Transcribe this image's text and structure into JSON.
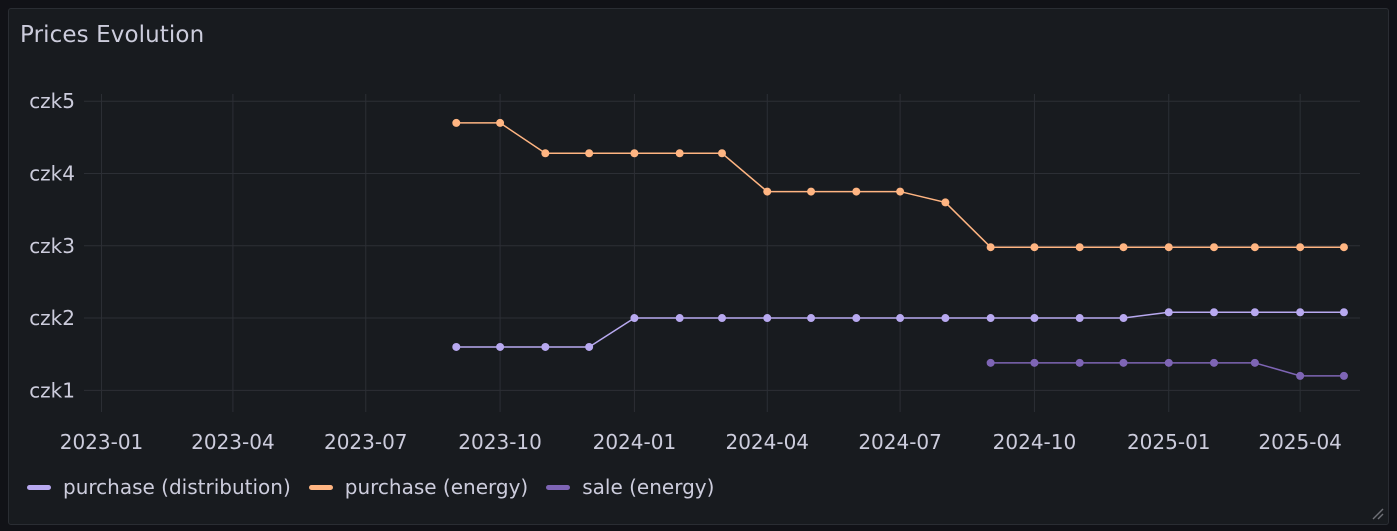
{
  "panel": {
    "title": "Prices Evolution"
  },
  "chart_data": {
    "type": "line",
    "title": "Prices Evolution",
    "x_axis": {
      "type": "date",
      "range": [
        "2022-12-20",
        "2025-05-12"
      ],
      "ticks": [
        "2023-01-01",
        "2023-04-01",
        "2023-07-01",
        "2023-10-01",
        "2024-01-01",
        "2024-04-01",
        "2024-07-01",
        "2024-10-01",
        "2025-01-01",
        "2025-04-01"
      ],
      "tick_labels": [
        "2023-01",
        "2023-04",
        "2023-07",
        "2023-10",
        "2024-01",
        "2024-04",
        "2024-07",
        "2024-10",
        "2025-01",
        "2025-04"
      ]
    },
    "y_axis": {
      "range": [
        0.7,
        5.1
      ],
      "ticks": [
        1,
        2,
        3,
        4,
        5
      ],
      "tick_labels": [
        "czk1",
        "czk2",
        "czk3",
        "czk4",
        "czk5"
      ]
    },
    "grid": true,
    "legend_position": "bottom-left",
    "series": [
      {
        "name": "purchase (distribution)",
        "color": "#b8a9f0",
        "x": [
          "2023-09-01",
          "2023-10-01",
          "2023-11-01",
          "2023-12-01",
          "2024-01-01",
          "2024-02-01",
          "2024-03-01",
          "2024-04-01",
          "2024-05-01",
          "2024-06-01",
          "2024-07-01",
          "2024-08-01",
          "2024-09-01",
          "2024-10-01",
          "2024-11-01",
          "2024-12-01",
          "2025-01-01",
          "2025-02-01",
          "2025-03-01",
          "2025-04-01",
          "2025-05-01"
        ],
        "values": [
          1.6,
          1.6,
          1.6,
          1.6,
          2.0,
          2.0,
          2.0,
          2.0,
          2.0,
          2.0,
          2.0,
          2.0,
          2.0,
          2.0,
          2.0,
          2.0,
          2.08,
          2.08,
          2.08,
          2.08,
          2.08
        ]
      },
      {
        "name": "purchase (energy)",
        "color": "#ffb582",
        "x": [
          "2023-09-01",
          "2023-10-01",
          "2023-11-01",
          "2023-12-01",
          "2024-01-01",
          "2024-02-01",
          "2024-03-01",
          "2024-04-01",
          "2024-05-01",
          "2024-06-01",
          "2024-07-01",
          "2024-08-01",
          "2024-09-01",
          "2024-10-01",
          "2024-11-01",
          "2024-12-01",
          "2025-01-01",
          "2025-02-01",
          "2025-03-01",
          "2025-04-01",
          "2025-05-01"
        ],
        "values": [
          4.7,
          4.7,
          4.28,
          4.28,
          4.28,
          4.28,
          4.28,
          3.75,
          3.75,
          3.75,
          3.75,
          3.6,
          2.98,
          2.98,
          2.98,
          2.98,
          2.98,
          2.98,
          2.98,
          2.98,
          2.98
        ]
      },
      {
        "name": "sale (energy)",
        "color": "#7e65b5",
        "x": [
          "2024-09-01",
          "2024-10-01",
          "2024-11-01",
          "2024-12-01",
          "2025-01-01",
          "2025-02-01",
          "2025-03-01",
          "2025-04-01",
          "2025-05-01"
        ],
        "values": [
          1.38,
          1.38,
          1.38,
          1.38,
          1.38,
          1.38,
          1.38,
          1.2,
          1.2
        ]
      }
    ]
  }
}
